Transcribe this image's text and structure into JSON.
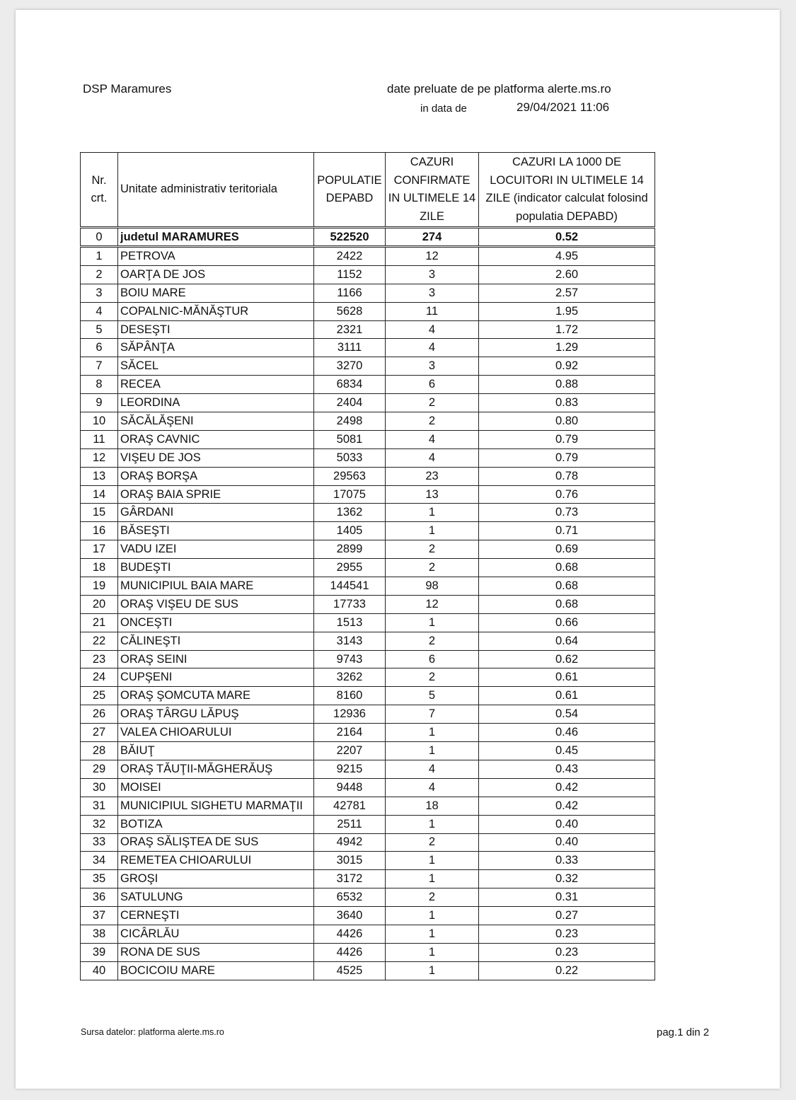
{
  "header": {
    "org": "DSP Maramures",
    "source": "date preluate de pe platforma alerte.ms.ro",
    "date_label": "in data de",
    "date_value": "29/04/2021 11:06"
  },
  "table": {
    "columns": [
      "Nr. crt.",
      "Unitate administrativ teritoriala",
      "POPULATIE DEPABD",
      "CAZURI CONFIRMATE IN ULTIMELE 14 ZILE",
      "CAZURI LA 1000 DE LOCUITORI IN ULTIMELE 14 ZILE (indicator calculat folosind populatia DEPABD)"
    ],
    "total": [
      "0",
      "judetul MARAMURES",
      "522520",
      "274",
      "0.52"
    ],
    "rows": [
      [
        "1",
        "PETROVA",
        "2422",
        "12",
        "4.95"
      ],
      [
        "2",
        "OARŢA DE JOS",
        "1152",
        "3",
        "2.60"
      ],
      [
        "3",
        "BOIU MARE",
        "1166",
        "3",
        "2.57"
      ],
      [
        "4",
        "COPALNIC-MĂNĂŞTUR",
        "5628",
        "11",
        "1.95"
      ],
      [
        "5",
        "DESEŞTI",
        "2321",
        "4",
        "1.72"
      ],
      [
        "6",
        "SĂPÂNŢA",
        "3111",
        "4",
        "1.29"
      ],
      [
        "7",
        "SĂCEL",
        "3270",
        "3",
        "0.92"
      ],
      [
        "8",
        "RECEA",
        "6834",
        "6",
        "0.88"
      ],
      [
        "9",
        "LEORDINA",
        "2404",
        "2",
        "0.83"
      ],
      [
        "10",
        "SĂCĂLĂŞENI",
        "2498",
        "2",
        "0.80"
      ],
      [
        "11",
        "ORAŞ CAVNIC",
        "5081",
        "4",
        "0.79"
      ],
      [
        "12",
        "VIŞEU DE JOS",
        "5033",
        "4",
        "0.79"
      ],
      [
        "13",
        "ORAŞ BORŞA",
        "29563",
        "23",
        "0.78"
      ],
      [
        "14",
        "ORAŞ BAIA SPRIE",
        "17075",
        "13",
        "0.76"
      ],
      [
        "15",
        "GÂRDANI",
        "1362",
        "1",
        "0.73"
      ],
      [
        "16",
        "BĂSEŞTI",
        "1405",
        "1",
        "0.71"
      ],
      [
        "17",
        "VADU IZEI",
        "2899",
        "2",
        "0.69"
      ],
      [
        "18",
        "BUDEŞTI",
        "2955",
        "2",
        "0.68"
      ],
      [
        "19",
        "MUNICIPIUL BAIA MARE",
        "144541",
        "98",
        "0.68"
      ],
      [
        "20",
        "ORAŞ VIŞEU DE SUS",
        "17733",
        "12",
        "0.68"
      ],
      [
        "21",
        "ONCEŞTI",
        "1513",
        "1",
        "0.66"
      ],
      [
        "22",
        "CĂLINEŞTI",
        "3143",
        "2",
        "0.64"
      ],
      [
        "23",
        "ORAŞ SEINI",
        "9743",
        "6",
        "0.62"
      ],
      [
        "24",
        "CUPŞENI",
        "3262",
        "2",
        "0.61"
      ],
      [
        "25",
        "ORAŞ ŞOMCUTA MARE",
        "8160",
        "5",
        "0.61"
      ],
      [
        "26",
        "ORAŞ TÂRGU LĂPUŞ",
        "12936",
        "7",
        "0.54"
      ],
      [
        "27",
        "VALEA CHIOARULUI",
        "2164",
        "1",
        "0.46"
      ],
      [
        "28",
        "BĂIUŢ",
        "2207",
        "1",
        "0.45"
      ],
      [
        "29",
        "ORAŞ TĂUŢII-MĂGHERĂUŞ",
        "9215",
        "4",
        "0.43"
      ],
      [
        "30",
        "MOISEI",
        "9448",
        "4",
        "0.42"
      ],
      [
        "31",
        "MUNICIPIUL SIGHETU MARMAŢII",
        "42781",
        "18",
        "0.42"
      ],
      [
        "32",
        "BOTIZA",
        "2511",
        "1",
        "0.40"
      ],
      [
        "33",
        "ORAŞ SĂLIŞTEA DE SUS",
        "4942",
        "2",
        "0.40"
      ],
      [
        "34",
        "REMETEA CHIOARULUI",
        "3015",
        "1",
        "0.33"
      ],
      [
        "35",
        "GROŞI",
        "3172",
        "1",
        "0.32"
      ],
      [
        "36",
        "SATULUNG",
        "6532",
        "2",
        "0.31"
      ],
      [
        "37",
        "CERNEŞTI",
        "3640",
        "1",
        "0.27"
      ],
      [
        "38",
        "CICÂRLĂU",
        "4426",
        "1",
        "0.23"
      ],
      [
        "39",
        "RONA DE SUS",
        "4426",
        "1",
        "0.23"
      ],
      [
        "40",
        "BOCICOIU MARE",
        "4525",
        "1",
        "0.22"
      ]
    ]
  },
  "footer": {
    "source": "Sursa datelor:  platforma  alerte.ms.ro",
    "page": "pag.1 din 2"
  }
}
